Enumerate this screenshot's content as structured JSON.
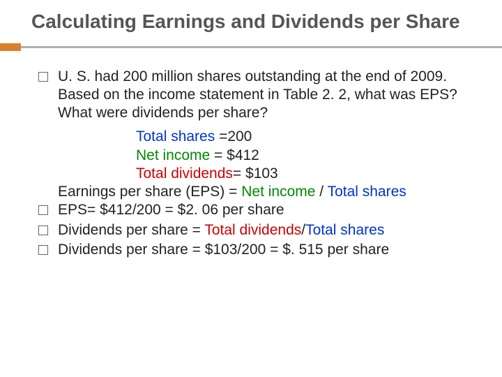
{
  "title": "Calculating Earnings and Dividends per Share",
  "intro": "U. S. had 200 million shares outstanding at the end of 2009. Based on the income statement in Table 2. 2, what was EPS? What were dividends per share?",
  "line1_pre": "Total shares ",
  "line1_post": "=200",
  "line2_pre": "Net income ",
  "line2_post": "= $412",
  "line3_pre": "Total dividends",
  "line3_post": "= $103",
  "line4_a": "Earnings per share (EPS) = ",
  "line4_b": "Net income ",
  "line4_c": "/ ",
  "line4_d": "Total shares",
  "line5": "EPS= $412/200 = $2. 06 per share",
  "line6_a": "Dividends per share = ",
  "line6_b": "Total dividends",
  "line6_c": "/",
  "line6_d": "Total shares",
  "line7": "Dividends per share  = $103/200 = $. 515 per share",
  "colors": {
    "accent": "#d97f2b",
    "divider": "#b0b0b0",
    "blue": "#0033cc",
    "green": "#008800",
    "red": "#cc0000"
  }
}
